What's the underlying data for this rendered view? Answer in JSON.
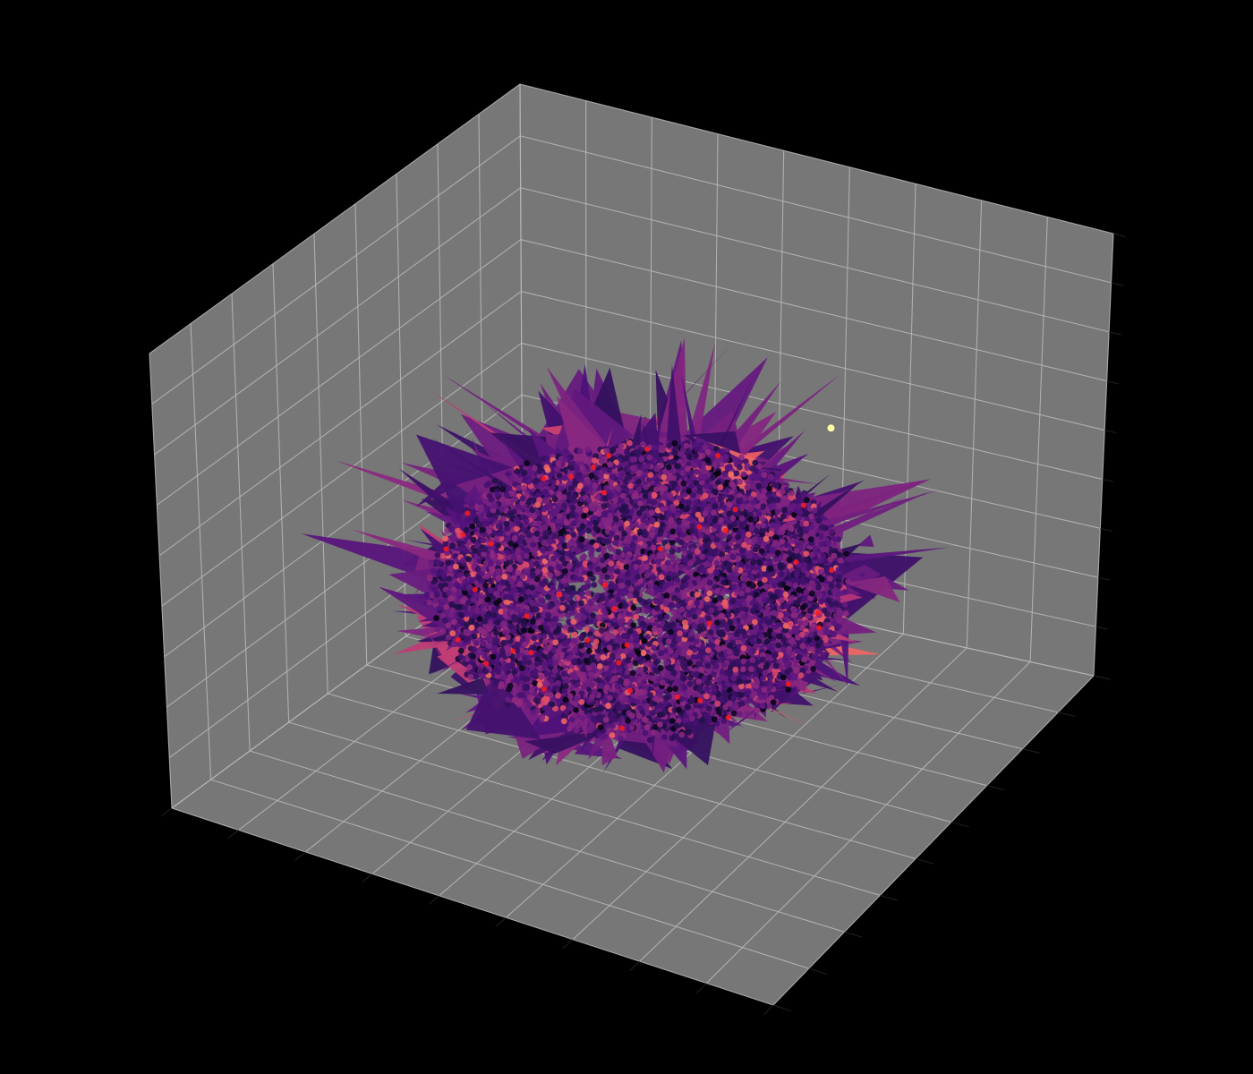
{
  "figure": {
    "background": "#000000",
    "pane_color": "#777777",
    "grid_color": "#b8b8b8",
    "edge_color": "#000000"
  },
  "chart_data": {
    "type": "scatter",
    "projection": "3d",
    "title": "",
    "xlabel": "",
    "ylabel": "",
    "zlabel": "",
    "tick_labels_visible": false,
    "grid": true,
    "legend": "none",
    "colormap": "magma",
    "xlim": [
      -1,
      1
    ],
    "ylim": [
      -1,
      1
    ],
    "zlim": [
      -1,
      1
    ],
    "grid_divisions": {
      "x": 9,
      "y": 9,
      "z": 9
    },
    "cloud": {
      "shape": "spiky ellipsoid surface with overlaid scatter points",
      "center": [
        0.0,
        0.0,
        -0.25
      ],
      "radii": [
        0.62,
        0.62,
        0.48
      ],
      "approx_point_count": 6000,
      "surface_spikes": true
    },
    "outliers": [
      {
        "x": 0.55,
        "y": 0.15,
        "z": 0.55,
        "color": "#fcffa4"
      }
    ],
    "accent_colors": [
      "#4a0c6b",
      "#7a1d6d",
      "#b5367a",
      "#e55c30",
      "#ff1a1a",
      "#000004"
    ]
  }
}
